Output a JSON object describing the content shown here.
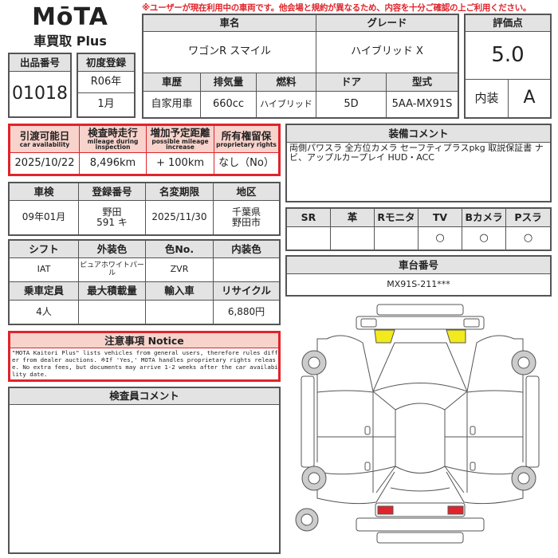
{
  "notice_banner": "※ユーザーが現在利用中の車両です。他会場と規約が異なるため、内容を十分ご確認の上ご利用ください。",
  "logo": {
    "brand": "MōTA",
    "sub": "車買取 Plus"
  },
  "listing": {
    "label": "出品番号",
    "value": "01018"
  },
  "first_reg": {
    "label": "初度登録",
    "year": "R06年",
    "month": "1月"
  },
  "car": {
    "name_label": "車名",
    "name": "ワゴンR スマイル",
    "grade_label": "グレード",
    "grade": "ハイブリッド X",
    "headers": [
      "車歴",
      "排気量",
      "燃料",
      "ドア",
      "型式"
    ],
    "values": [
      "自家用車",
      "660cc",
      "ハイブリッド",
      "5D",
      "5AA-MX91S"
    ]
  },
  "score": {
    "label": "評価点",
    "value": "5.0",
    "interior_label": "内装",
    "interior": "A"
  },
  "availability": {
    "headers": [
      {
        "jp": "引渡可能日",
        "en": "car availability"
      },
      {
        "jp": "検査時走行",
        "en": "mileage during inspection"
      },
      {
        "jp": "増加予定距離",
        "en": "possible mileage increase"
      },
      {
        "jp": "所有権留保",
        "en": "proprietary rights"
      }
    ],
    "values": [
      "2025/10/22",
      "8,496km",
      "+ 100km",
      "なし（No）"
    ]
  },
  "reg": {
    "headers": [
      "車検",
      "登録番号",
      "名変期限",
      "地区"
    ],
    "values": [
      "09年01月",
      "野田\n591 キ",
      "2025/11/30",
      "千葉県\n野田市"
    ]
  },
  "spec": {
    "headers1": [
      "シフト",
      "外装色",
      "色No.",
      "内装色"
    ],
    "values1": [
      "IAT",
      "ピュアホワイトパール",
      "ZVR",
      ""
    ],
    "headers2": [
      "乗車定員",
      "最大積載量",
      "輸入車",
      "リサイクル"
    ],
    "values2": [
      "4人",
      "",
      "",
      "6,880円"
    ]
  },
  "notice": {
    "title": "注意事項 Notice",
    "text": "\"MOTA Kaitori Plus\" lists vehicles from general users, therefore rules differ from dealer auctions. ※If 'Yes,' MOTA handles proprietary rights release. No extra fees, but documents may arrive 1-2 weeks after the car availability date."
  },
  "inspector": {
    "label": "検査員コメント",
    "text": ""
  },
  "equipment": {
    "label": "装備コメント",
    "text": "両側パワスラ 全方位カメラ セーフティプラスpkg 取説保証書 ナビ、アップルカープレイ HUD・ACC"
  },
  "options": {
    "headers": [
      "SR",
      "革",
      "Rモニタ",
      "TV",
      "Bカメラ",
      "Pスラ"
    ],
    "values": [
      "",
      "",
      "",
      "○",
      "○",
      "○"
    ]
  },
  "chassis": {
    "label": "車台番号",
    "value": "MX91S-211***"
  },
  "colors": {
    "red": "#e0242b",
    "header_gray": "#e3e3e3",
    "pink": "#f7d3cc",
    "damage_yellow": "#f2ea1d",
    "damage_red": "#e0242b"
  }
}
